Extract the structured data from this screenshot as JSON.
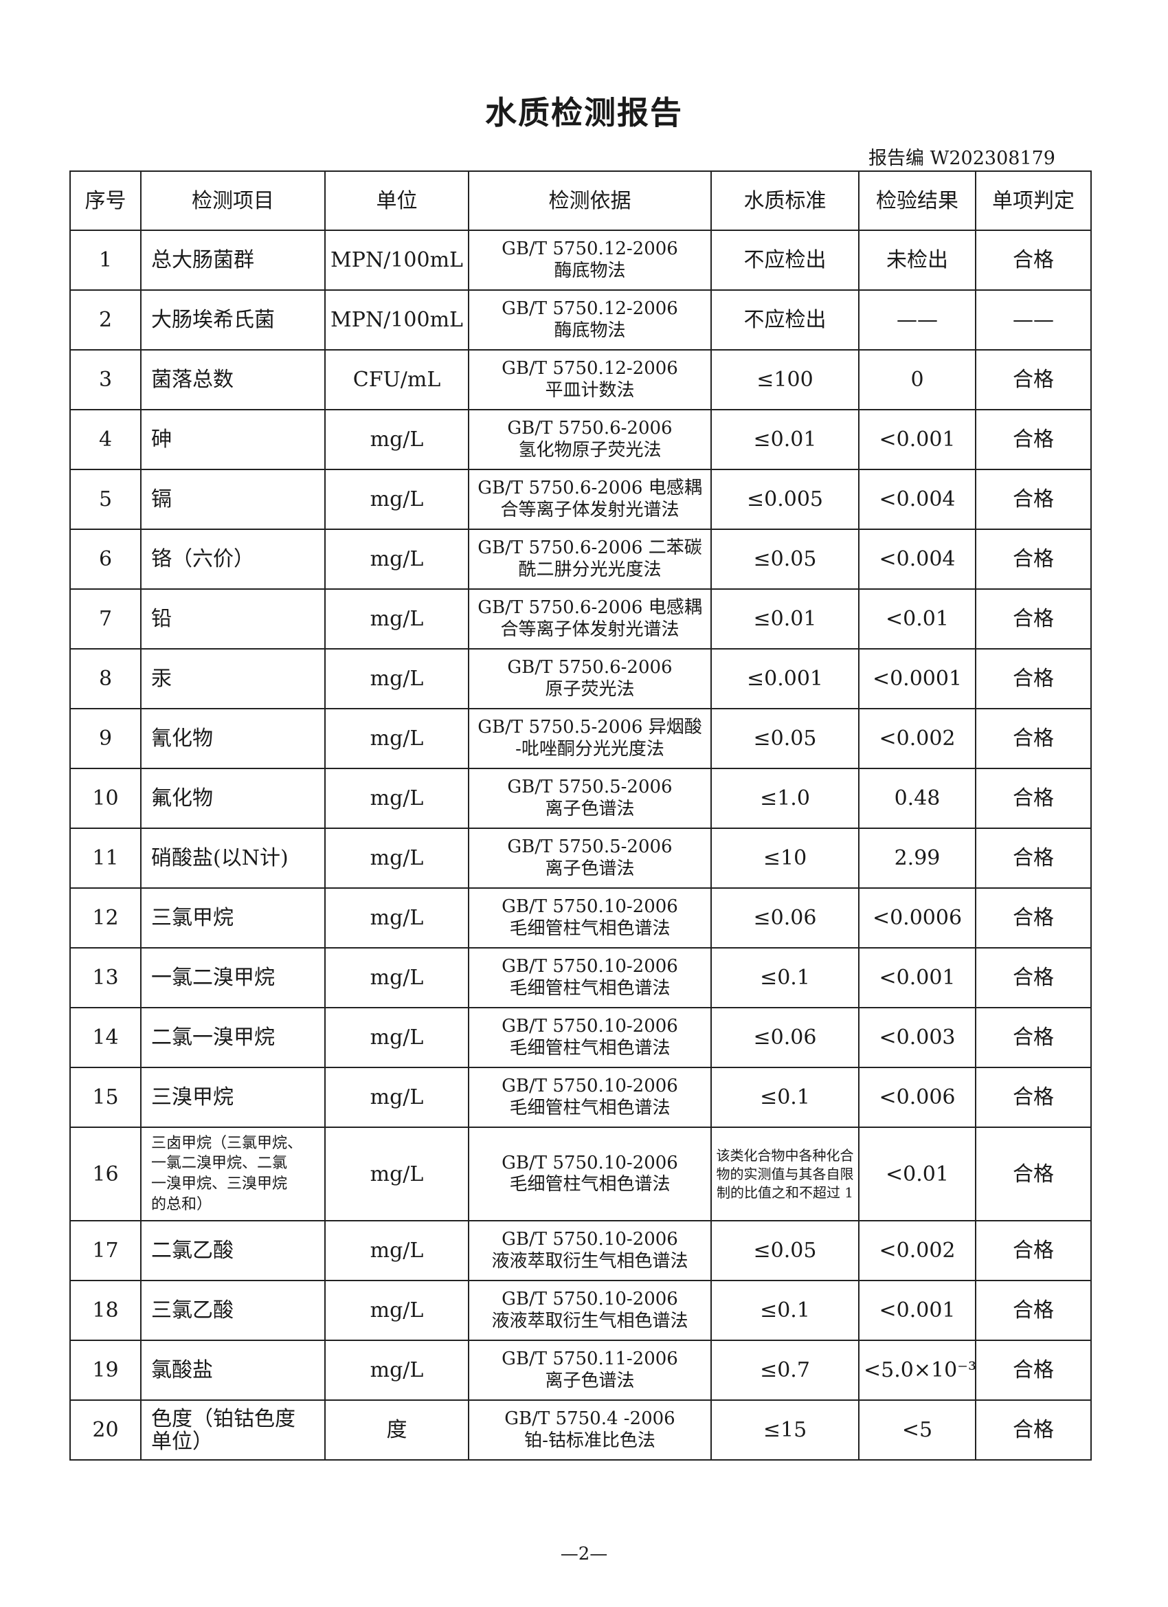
{
  "header": {
    "title": "水质检测报告",
    "report_no": "报告编 W202308179"
  },
  "table": {
    "columns": [
      "序号",
      "检测项目",
      "单位",
      "检测依据",
      "水质标准",
      "检验结果",
      "单项判定"
    ],
    "rows": [
      [
        "1",
        "总大肠菌群",
        "MPN/100mL",
        [
          "GB/T 5750.12-2006",
          "酶底物法"
        ],
        "不应检出",
        "未检出",
        "合格"
      ],
      [
        "2",
        "大肠埃希氏菌",
        "MPN/100mL",
        [
          "GB/T 5750.12-2006",
          "酶底物法"
        ],
        "不应检出",
        "——",
        "——"
      ],
      [
        "3",
        "菌落总数",
        "CFU/mL",
        [
          "GB/T 5750.12-2006",
          "平皿计数法"
        ],
        "≤100",
        "0",
        "合格"
      ],
      [
        "4",
        "砷",
        "mg/L",
        [
          "GB/T 5750.6-2006",
          "氢化物原子荧光法"
        ],
        "≤0.01",
        "<0.001",
        "合格"
      ],
      [
        "5",
        "镉",
        "mg/L",
        [
          "GB/T 5750.6-2006 电感耦",
          "合等离子体发射光谱法"
        ],
        "≤0.005",
        "<0.004",
        "合格"
      ],
      [
        "6",
        "铬（六价）",
        "mg/L",
        [
          "GB/T 5750.6-2006 二苯碳",
          "酰二肼分光光度法"
        ],
        "≤0.05",
        "<0.004",
        "合格"
      ],
      [
        "7",
        "铅",
        "mg/L",
        [
          "GB/T 5750.6-2006 电感耦",
          "合等离子体发射光谱法"
        ],
        "≤0.01",
        "<0.01",
        "合格"
      ],
      [
        "8",
        "汞",
        "mg/L",
        [
          "GB/T 5750.6-2006",
          "原子荧光法"
        ],
        "≤0.001",
        "<0.0001",
        "合格"
      ],
      [
        "9",
        "氰化物",
        "mg/L",
        [
          "GB/T 5750.5-2006 异烟酸",
          "-吡唑酮分光光度法"
        ],
        "≤0.05",
        "<0.002",
        "合格"
      ],
      [
        "10",
        "氟化物",
        "mg/L",
        [
          "GB/T 5750.5-2006",
          "离子色谱法"
        ],
        "≤1.0",
        "0.48",
        "合格"
      ],
      [
        "11",
        "硝酸盐(以N计)",
        "mg/L",
        [
          "GB/T 5750.5-2006",
          "离子色谱法"
        ],
        "≤10",
        "2.99",
        "合格"
      ],
      [
        "12",
        "三氯甲烷",
        "mg/L",
        [
          "GB/T 5750.10-2006",
          "毛细管柱气相色谱法"
        ],
        "≤0.06",
        "<0.0006",
        "合格"
      ],
      [
        "13",
        "一氯二溴甲烷",
        "mg/L",
        [
          "GB/T 5750.10-2006",
          "毛细管柱气相色谱法"
        ],
        "≤0.1",
        "<0.001",
        "合格"
      ],
      [
        "14",
        "二氯一溴甲烷",
        "mg/L",
        [
          "GB/T 5750.10-2006",
          "毛细管柱气相色谱法"
        ],
        "≤0.06",
        "<0.003",
        "合格"
      ],
      [
        "15",
        "三溴甲烷",
        "mg/L",
        [
          "GB/T 5750.10-2006",
          "毛细管柱气相色谱法"
        ],
        "≤0.1",
        "<0.006",
        "合格"
      ],
      [
        "16",
        [
          "三卤甲烷（三氯甲烷、",
          "一氯二溴甲烷、二氯",
          "一溴甲烷、三溴甲烷",
          "的总和）"
        ],
        "mg/L",
        [
          "GB/T 5750.10-2006",
          "毛细管柱气相色谱法"
        ],
        [
          "该类化合物中各种化合",
          "物的实测值与其各自限",
          "制的比值之和不超过 1"
        ],
        "<0.01",
        "合格"
      ],
      [
        "17",
        "二氯乙酸",
        "mg/L",
        [
          "GB/T 5750.10-2006",
          "液液萃取衍生气相色谱法"
        ],
        "≤0.05",
        "<0.002",
        "合格"
      ],
      [
        "18",
        "三氯乙酸",
        "mg/L",
        [
          "GB/T 5750.10-2006",
          "液液萃取衍生气相色谱法"
        ],
        "≤0.1",
        "<0.001",
        "合格"
      ],
      [
        "19",
        "氯酸盐",
        "mg/L",
        [
          "GB/T 5750.11-2006",
          "离子色谱法"
        ],
        "≤0.7",
        "<5.0×10⁻³",
        "合格"
      ],
      [
        "20",
        [
          "色度（铂钴色度",
          "单位）"
        ],
        "度",
        [
          "GB/T 5750.4 -2006",
          "铂-钴标准比色法"
        ],
        "≤15",
        "<5",
        "合格"
      ]
    ]
  },
  "footer": {
    "page": "—2—"
  }
}
